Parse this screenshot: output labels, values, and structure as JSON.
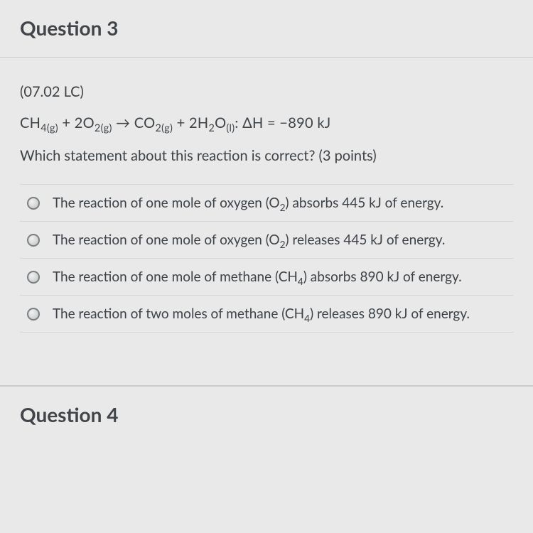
{
  "question3": {
    "title": "Question 3",
    "code": "(07.02 LC)",
    "equation": {
      "ch4": "CH",
      "ch4_sub": "4(g)",
      "plus1": " + ",
      "two": "2O",
      "o2_sub": "2(g)",
      "arrow": " → ",
      "co2": "CO",
      "co2_sub": "2(g)",
      "plus2": " + ",
      "h2o_two": "2H",
      "h2o_sub1": "2",
      "h2o_o": "O",
      "h2o_sub2": "(l)",
      "colon": ": ",
      "dh": "ΔH = −890 kJ"
    },
    "prompt": "Which statement about this reaction is correct? (3 points)",
    "options": [
      {
        "pre": "The reaction of one mole of oxygen (O",
        "sub": "2",
        "post": ") absorbs 445 kJ of energy."
      },
      {
        "pre": "The reaction of one mole of oxygen (O",
        "sub": "2",
        "post": ") releases 445 kJ of energy."
      },
      {
        "pre": "The reaction of one mole of methane (CH",
        "sub": "4",
        "post": ") absorbs 890 kJ of energy."
      },
      {
        "pre": "The reaction of two moles of methane (CH",
        "sub": "4",
        "post": ") releases 890 kJ of energy."
      }
    ]
  },
  "question4": {
    "title": "Question 4"
  },
  "colors": {
    "bg": "#e8e9e8",
    "text": "#3e4348",
    "divider": "#d6d6d6",
    "radio_border": "#7a7f83"
  }
}
